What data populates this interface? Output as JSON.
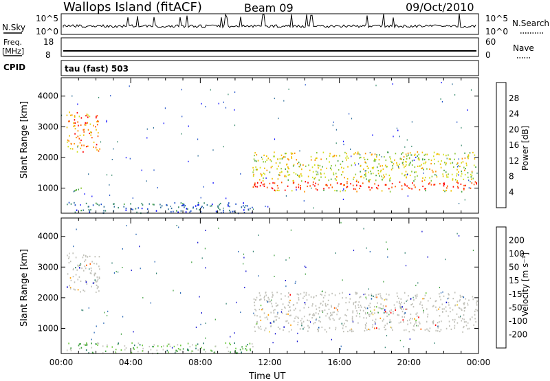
{
  "header": {
    "title": "Wallops Island (fitACF)",
    "beam": "Beam 09",
    "date": "09/Oct/2010"
  },
  "top_panels": {
    "nsky_label": "N.Sky",
    "nsearch_label": "N.Search",
    "nsky_tick_top": "10^5",
    "nsky_tick_bottom": "10^0",
    "freq_label_1": "Freq.",
    "freq_label_2": "[MHz]",
    "freq_tick_top": "18",
    "freq_tick_bottom": "8",
    "nave_label": "Nave",
    "nave_tick_top": "60",
    "nave_tick_bottom": "0",
    "cpid_label": "CPID",
    "cpid_value": "tau (fast) 503"
  },
  "colors": {
    "power": [
      "#0000ff",
      "#1e50c8",
      "#2f6f99",
      "#3a8c6e",
      "#4aa646",
      "#8cc83a",
      "#d2e020",
      "#f0c000",
      "#ff9000",
      "#ff5a00",
      "#ff0000"
    ],
    "velocity": [
      "#0000cc",
      "#2060b0",
      "#2f7f6f",
      "#40a040",
      "#6cc840",
      "#c8c8c0",
      "#c8c8c0",
      "#f0d040",
      "#ffa000",
      "#ff6000",
      "#ff0000"
    ],
    "ground_scatter": "#c0c0b8"
  },
  "chart_data": [
    {
      "type": "heatmap",
      "name": "power",
      "xlabel": "",
      "ylabel": "Slant Range [km]",
      "xlim": [
        0,
        24
      ],
      "ylim": [
        180,
        4600
      ],
      "yticks": [
        "1000",
        "2000",
        "3000",
        "4000"
      ],
      "colorbar_label": "Power [dB]",
      "colorbar_ticks": [
        "4",
        "8",
        "12",
        "16",
        "20",
        "24",
        "28"
      ],
      "regions": [
        {
          "t0": 0.3,
          "t1": 2.2,
          "r0": 2200,
          "r1": 3500,
          "level": 8
        },
        {
          "t0": 0.5,
          "t1": 1.2,
          "r0": 850,
          "r1": 1050,
          "level": 3
        },
        {
          "t0": 0.3,
          "t1": 11.0,
          "r0": 200,
          "r1": 550,
          "level": 2
        },
        {
          "t0": 11.0,
          "t1": 23.9,
          "r0": 900,
          "r1": 2200,
          "level": 6
        }
      ]
    },
    {
      "type": "heatmap",
      "name": "velocity",
      "xlabel": "Time UT",
      "ylabel": "Slant Range [km]",
      "xlim": [
        0,
        24
      ],
      "ylim": [
        180,
        4600
      ],
      "xticks": [
        "00:00",
        "04:00",
        "08:00",
        "12:00",
        "16:00",
        "20:00",
        "00:00"
      ],
      "yticks": [
        "1000",
        "2000",
        "3000",
        "4000"
      ],
      "colorbar_label": "Velocity [m s⁻¹]",
      "colorbar_ticks": [
        "200",
        "100",
        "50",
        "15",
        "-15",
        "-50",
        "-100",
        "-200"
      ],
      "regions": [
        {
          "t0": 0.3,
          "t1": 2.2,
          "r0": 2200,
          "r1": 3500,
          "level": 5
        },
        {
          "t0": 0.3,
          "t1": 11.0,
          "r0": 200,
          "r1": 550,
          "level": 4
        },
        {
          "t0": 11.0,
          "t1": 23.9,
          "r0": 900,
          "r1": 2200,
          "level": 5
        }
      ]
    }
  ]
}
